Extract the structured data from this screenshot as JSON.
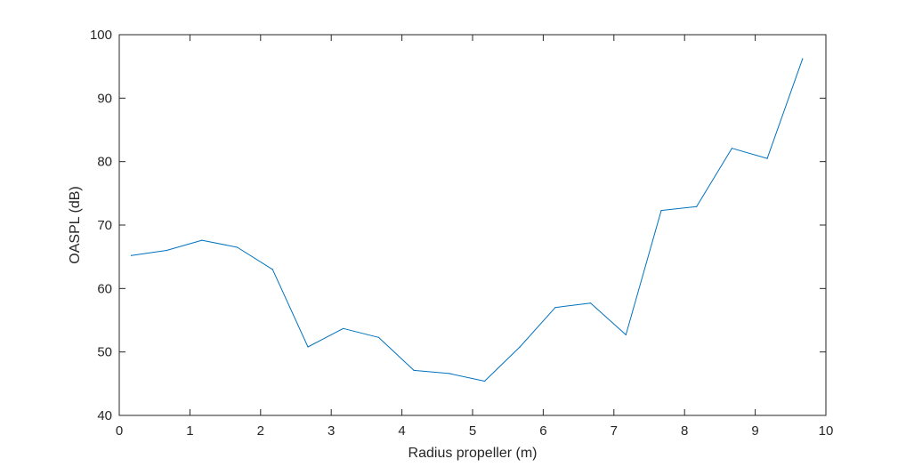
{
  "chart_data": {
    "type": "line",
    "title": "",
    "xlabel": "Radius propeller (m)",
    "ylabel": "OASPL (dB)",
    "xlim": [
      0,
      10
    ],
    "ylim": [
      40,
      100
    ],
    "xticks": [
      0,
      1,
      2,
      3,
      4,
      5,
      6,
      7,
      8,
      9,
      10
    ],
    "yticks": [
      40,
      50,
      60,
      70,
      80,
      90,
      100
    ],
    "grid": false,
    "legend": "none",
    "series": [
      {
        "color": "#0072bd",
        "x": [
          0.17,
          0.67,
          1.17,
          1.67,
          2.17,
          2.67,
          3.17,
          3.67,
          4.17,
          4.67,
          5.17,
          5.67,
          6.17,
          6.67,
          7.17,
          7.67,
          8.17,
          8.67,
          9.17,
          9.67
        ],
        "values": [
          65.2,
          66.0,
          67.6,
          66.5,
          63.0,
          50.8,
          53.7,
          52.3,
          47.1,
          46.6,
          45.4,
          50.8,
          57.0,
          57.7,
          52.7,
          72.3,
          72.9,
          82.1,
          80.5,
          96.2
        ]
      }
    ]
  }
}
